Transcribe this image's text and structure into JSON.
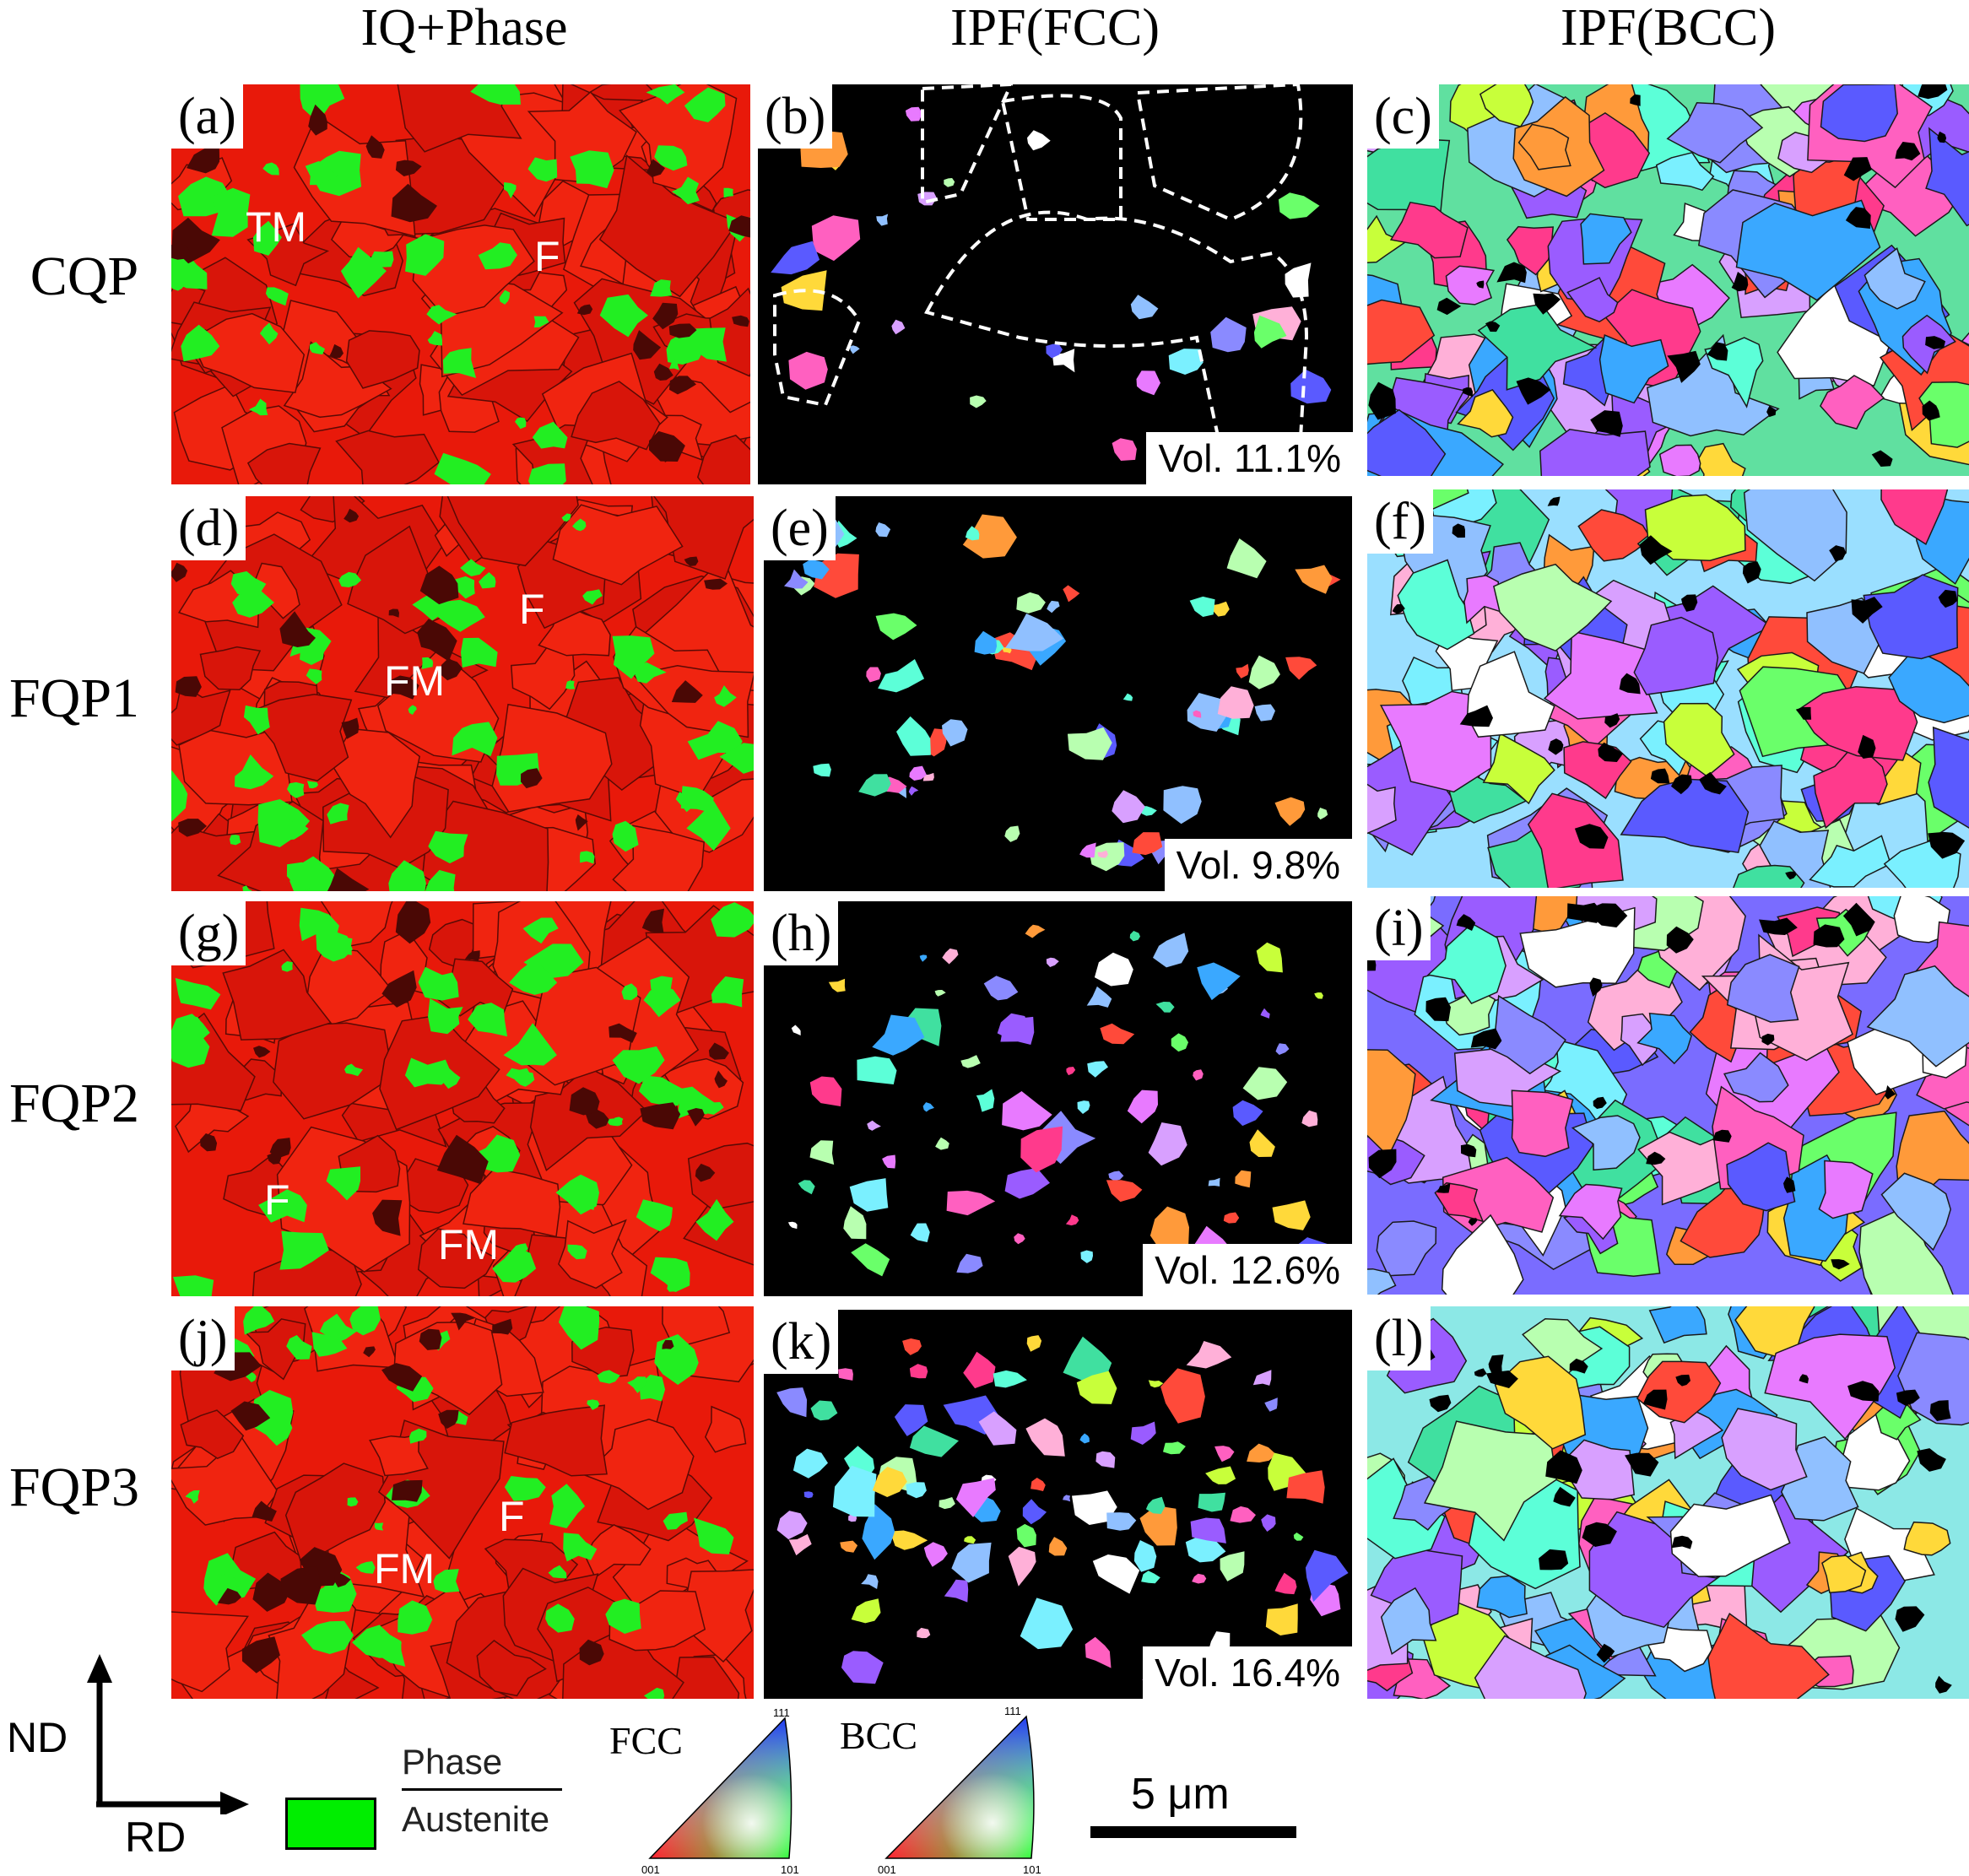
{
  "columns": [
    "IQ+Phase",
    "IPF(FCC)",
    "IPF(BCC)"
  ],
  "rows": [
    {
      "name": "CQP",
      "iq": {
        "label": "(a)",
        "markers": [
          "TM",
          "F"
        ]
      },
      "fcc": {
        "label": "(b)",
        "vol": "Vol. 11.1%"
      },
      "bcc": {
        "label": "(c)"
      }
    },
    {
      "name": "FQP1",
      "iq": {
        "label": "(d)",
        "markers": [
          "F",
          "FM"
        ]
      },
      "fcc": {
        "label": "(e)",
        "vol": "Vol. 9.8%"
      },
      "bcc": {
        "label": "(f)"
      }
    },
    {
      "name": "FQP2",
      "iq": {
        "label": "(g)",
        "markers": [
          "F",
          "FM"
        ]
      },
      "fcc": {
        "label": "(h)",
        "vol": "Vol. 12.6%"
      },
      "bcc": {
        "label": "(i)"
      }
    },
    {
      "name": "FQP3",
      "iq": {
        "label": "(j)",
        "markers": [
          "F",
          "FM"
        ]
      },
      "fcc": {
        "label": "(k)",
        "vol": "Vol. 16.4%"
      },
      "bcc": {
        "label": "(l)"
      }
    }
  ],
  "legend": {
    "axes": {
      "vertical": "ND",
      "horizontal": "RD"
    },
    "phase_header": "Phase",
    "phase_name": "Austenite",
    "phase_color": "#00ee00",
    "fcc_label": "FCC",
    "bcc_label": "BCC",
    "triangle_corners": [
      "111",
      "001",
      "101"
    ],
    "scale_bar": "5 μm"
  },
  "colors": {
    "ferrite_red": "#ee1c0c",
    "austenite_green": "#22ee22",
    "background_black": "#000000"
  }
}
